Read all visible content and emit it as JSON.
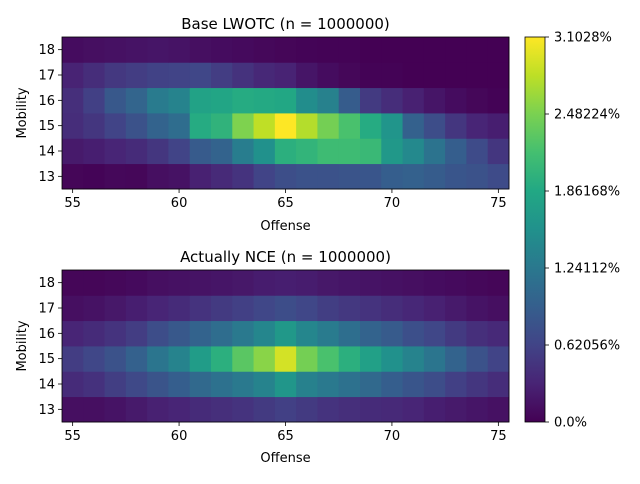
{
  "chart_data": [
    {
      "type": "heatmap",
      "title": "Base LWOTC (n = 1000000)",
      "xlabel": "Offense",
      "ylabel": "Mobility",
      "x_range": [
        55,
        75
      ],
      "y_range": [
        13,
        18
      ],
      "x_ticks": [
        "55",
        "60",
        "65",
        "70",
        "75"
      ],
      "y_ticks": [
        "13",
        "14",
        "15",
        "16",
        "17",
        "18"
      ],
      "values": [
        [
          0.04,
          0.03,
          0.06,
          0.05,
          0.12,
          0.15,
          0.28,
          0.37,
          0.46,
          0.62,
          0.73,
          0.78,
          0.78,
          0.8,
          0.82,
          0.92,
          0.95,
          0.9,
          0.82,
          0.78,
          0.7
        ],
        [
          0.22,
          0.26,
          0.32,
          0.38,
          0.48,
          0.62,
          0.88,
          0.98,
          1.3,
          1.55,
          1.95,
          2.02,
          2.12,
          2.12,
          2.08,
          1.65,
          1.45,
          1.18,
          0.92,
          0.7,
          0.48
        ],
        [
          0.4,
          0.48,
          0.62,
          0.78,
          0.98,
          1.1,
          1.9,
          2.0,
          2.5,
          2.8,
          3.1028,
          2.75,
          2.45,
          2.2,
          1.9,
          1.6,
          0.95,
          0.72,
          0.48,
          0.32,
          0.26
        ],
        [
          0.42,
          0.58,
          0.85,
          1.0,
          1.28,
          1.38,
          1.78,
          1.82,
          1.9,
          1.88,
          1.85,
          1.5,
          1.35,
          0.9,
          0.52,
          0.4,
          0.28,
          0.18,
          0.1,
          0.05,
          0.02
        ],
        [
          0.3,
          0.4,
          0.5,
          0.55,
          0.6,
          0.62,
          0.65,
          0.55,
          0.45,
          0.35,
          0.3,
          0.18,
          0.1,
          0.05,
          0.02,
          0.02,
          0.0,
          0.0,
          0.0,
          0.0,
          0.0
        ],
        [
          0.1,
          0.12,
          0.14,
          0.16,
          0.18,
          0.16,
          0.12,
          0.1,
          0.08,
          0.06,
          0.04,
          0.03,
          0.02,
          0.02,
          0.0,
          0.0,
          0.0,
          0.0,
          0.0,
          0.0,
          0.0
        ]
      ]
    },
    {
      "type": "heatmap",
      "title": "Actually NCE (n = 1000000)",
      "xlabel": "Offense",
      "ylabel": "Mobility",
      "x_range": [
        55,
        75
      ],
      "y_range": [
        13,
        18
      ],
      "x_ticks": [
        "55",
        "60",
        "65",
        "70",
        "75"
      ],
      "y_ticks": [
        "13",
        "14",
        "15",
        "16",
        "17",
        "18"
      ],
      "values": [
        [
          0.12,
          0.12,
          0.16,
          0.22,
          0.28,
          0.32,
          0.38,
          0.42,
          0.46,
          0.52,
          0.58,
          0.52,
          0.46,
          0.42,
          0.38,
          0.36,
          0.32,
          0.26,
          0.22,
          0.18,
          0.14
        ],
        [
          0.38,
          0.44,
          0.56,
          0.68,
          0.8,
          0.92,
          1.05,
          1.15,
          1.25,
          1.38,
          1.62,
          1.35,
          1.25,
          1.15,
          1.05,
          0.92,
          0.82,
          0.72,
          0.58,
          0.48,
          0.4
        ],
        [
          0.55,
          0.65,
          0.78,
          0.95,
          1.2,
          1.38,
          1.7,
          1.95,
          2.3,
          2.55,
          2.9,
          2.45,
          2.2,
          1.95,
          1.75,
          1.55,
          1.38,
          1.2,
          0.98,
          0.78,
          0.62
        ],
        [
          0.32,
          0.38,
          0.46,
          0.55,
          0.72,
          0.85,
          0.98,
          1.1,
          1.25,
          1.42,
          1.65,
          1.42,
          1.28,
          1.12,
          0.98,
          0.88,
          0.75,
          0.65,
          0.52,
          0.42,
          0.36
        ],
        [
          0.12,
          0.15,
          0.2,
          0.26,
          0.32,
          0.38,
          0.46,
          0.52,
          0.58,
          0.65,
          0.72,
          0.65,
          0.56,
          0.5,
          0.46,
          0.4,
          0.34,
          0.28,
          0.22,
          0.16,
          0.12
        ],
        [
          0.04,
          0.04,
          0.06,
          0.08,
          0.12,
          0.14,
          0.16,
          0.18,
          0.2,
          0.24,
          0.26,
          0.24,
          0.2,
          0.18,
          0.16,
          0.14,
          0.12,
          0.1,
          0.08,
          0.06,
          0.04
        ]
      ]
    }
  ],
  "colorbar": {
    "min": 0,
    "max": 3.1028,
    "tick_values": [
      0,
      0.62056,
      1.24112,
      1.86168,
      2.48224,
      3.1028
    ],
    "tick_labels": [
      "0.0%",
      "0.62056%",
      "1.24112%",
      "1.86168%",
      "2.48224%",
      "3.1028%"
    ],
    "colormap": "viridis"
  }
}
